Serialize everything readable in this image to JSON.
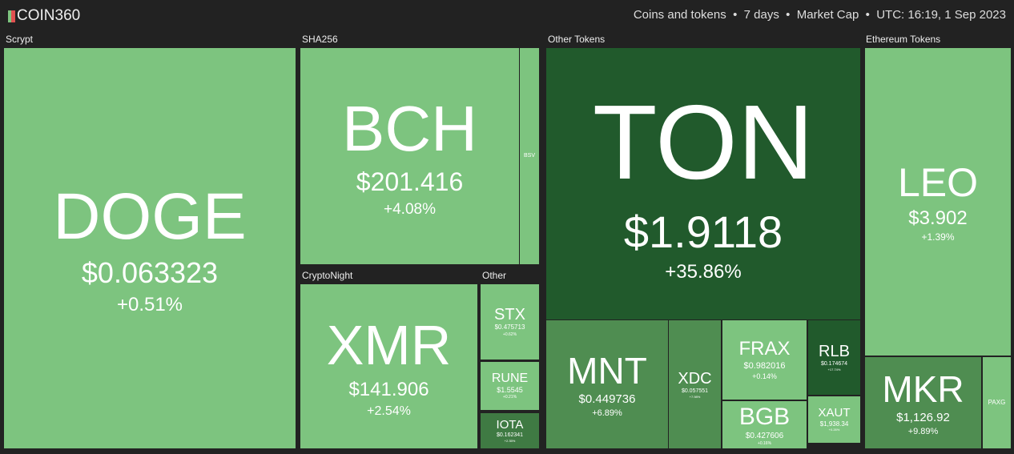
{
  "header": {
    "logo": "COIN360",
    "subtitle": "Coins and tokens  •  7 days  •  Market Cap  •  UTC: 16:19, 1 Sep 2023"
  },
  "groups": [
    "Scrypt",
    "SHA256",
    "CryptoNight",
    "Other",
    "Other Tokens",
    "Ethereum Tokens"
  ],
  "tiles": [
    {
      "symbol": "DOGE",
      "price": "$0.063323",
      "change": "+0.51%"
    },
    {
      "symbol": "BCH",
      "price": "$201.416",
      "change": "+4.08%"
    },
    {
      "symbol": "BSV"
    },
    {
      "symbol": "XMR",
      "price": "$141.906",
      "change": "+2.54%"
    },
    {
      "symbol": "STX",
      "price": "$0.475713",
      "change": "+0.62%"
    },
    {
      "symbol": "RUNE",
      "price": "$1.5545",
      "change": "+0.21%"
    },
    {
      "symbol": "IOTA",
      "price": "$0.162341",
      "change": "+2.35%"
    },
    {
      "symbol": "TON",
      "price": "$1.9118",
      "change": "+35.86%"
    },
    {
      "symbol": "MNT",
      "price": "$0.449736",
      "change": "+6.89%"
    },
    {
      "symbol": "XDC",
      "price": "$0.057551",
      "change": "+7.98%"
    },
    {
      "symbol": "FRAX",
      "price": "$0.982016",
      "change": "+0.14%"
    },
    {
      "symbol": "BGB",
      "price": "$0.427606",
      "change": "+0.16%"
    },
    {
      "symbol": "RLB",
      "price": "$0.174674",
      "change": "+17.74%"
    },
    {
      "symbol": "XAUT",
      "price": "$1,938.34",
      "change": "+0.26%"
    },
    {
      "symbol": "LEO",
      "price": "$3.902",
      "change": "+1.39%"
    },
    {
      "symbol": "MKR",
      "price": "$1,126.92",
      "change": "+9.89%"
    },
    {
      "symbol": "PAXG"
    }
  ]
}
